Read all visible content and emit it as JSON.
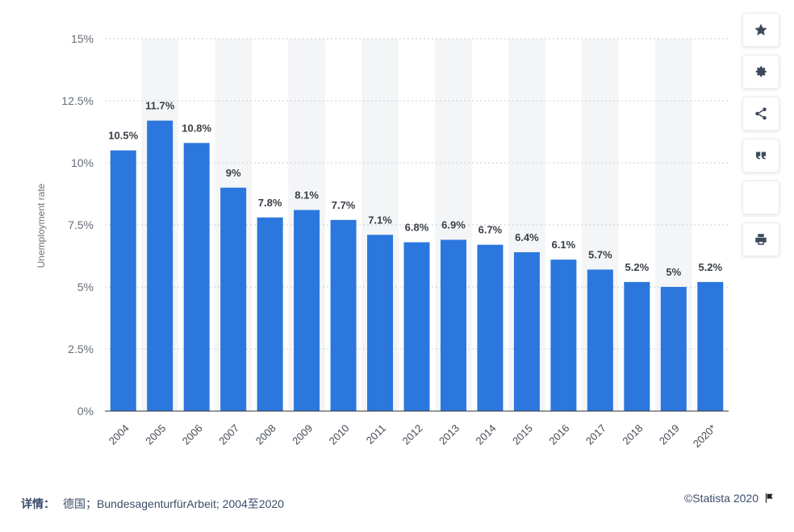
{
  "chart_data": {
    "type": "bar",
    "categories": [
      "2004",
      "2005",
      "2006",
      "2007",
      "2008",
      "2009",
      "2010",
      "2011",
      "2012",
      "2013",
      "2014",
      "2015",
      "2016",
      "2017",
      "2018",
      "2019",
      "2020*"
    ],
    "values": [
      10.5,
      11.7,
      10.8,
      9,
      7.8,
      8.1,
      7.7,
      7.1,
      6.8,
      6.9,
      6.7,
      6.4,
      6.1,
      5.7,
      5.2,
      5,
      5.2
    ],
    "value_labels": [
      "10.5%",
      "11.7%",
      "10.8%",
      "9%",
      "7.8%",
      "8.1%",
      "7.7%",
      "7.1%",
      "6.8%",
      "6.9%",
      "6.7%",
      "6.4%",
      "6.1%",
      "5.7%",
      "5.2%",
      "5%",
      "5.2%"
    ],
    "ylabel": "Unemployment rate",
    "xlabel": "",
    "ylim": [
      0,
      15
    ],
    "yticks": [
      0,
      2.5,
      5,
      7.5,
      10,
      12.5,
      15
    ],
    "ytick_labels": [
      "0%",
      "2.5%",
      "5%",
      "7.5%",
      "10%",
      "12.5%",
      "15%"
    ],
    "grid": true,
    "bar_color": "#2b77dd"
  },
  "toolbar": {
    "buttons": [
      {
        "name": "favorite-star-icon",
        "icon": "star"
      },
      {
        "name": "settings-gear-icon",
        "icon": "gear"
      },
      {
        "name": "share-icon",
        "icon": "share"
      },
      {
        "name": "cite-quote-icon",
        "icon": "quote"
      },
      {
        "name": "blank-button",
        "icon": "none"
      },
      {
        "name": "print-icon",
        "icon": "print"
      }
    ]
  },
  "footer": {
    "details_key": "详情：",
    "details_value": "德国；BundesagenturfürArbeit; 2004至2020",
    "copyright": "©Statista 2020"
  }
}
